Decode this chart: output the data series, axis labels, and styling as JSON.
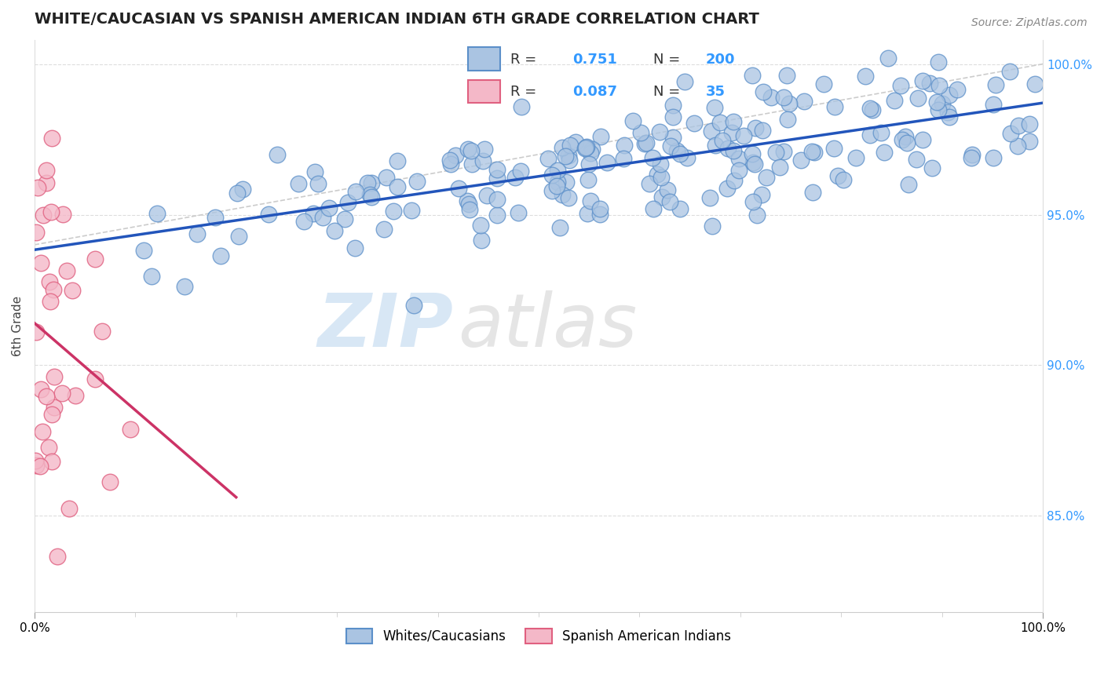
{
  "title": "WHITE/CAUCASIAN VS SPANISH AMERICAN INDIAN 6TH GRADE CORRELATION CHART",
  "source": "Source: ZipAtlas.com",
  "ylabel": "6th Grade",
  "x_min": 0.0,
  "x_max": 1.0,
  "y_min": 0.818,
  "y_max": 1.008,
  "y_ticks": [
    0.85,
    0.9,
    0.95,
    1.0
  ],
  "y_tick_labels": [
    "85.0%",
    "90.0%",
    "95.0%",
    "100.0%"
  ],
  "blue_R": 0.751,
  "blue_N": 200,
  "pink_R": 0.087,
  "pink_N": 35,
  "blue_color": "#aac4e2",
  "blue_edge": "#5b8fc9",
  "pink_color": "#f4b8c8",
  "pink_edge": "#e06080",
  "blue_line_color": "#2255bb",
  "pink_line_color": "#cc3366",
  "ref_line_color": "#cccccc",
  "legend_label_blue": "Whites/Caucasians",
  "legend_label_pink": "Spanish American Indians",
  "background_color": "#ffffff",
  "title_fontsize": 14,
  "axis_fontsize": 11,
  "blue_seed": 42,
  "pink_seed": 7
}
